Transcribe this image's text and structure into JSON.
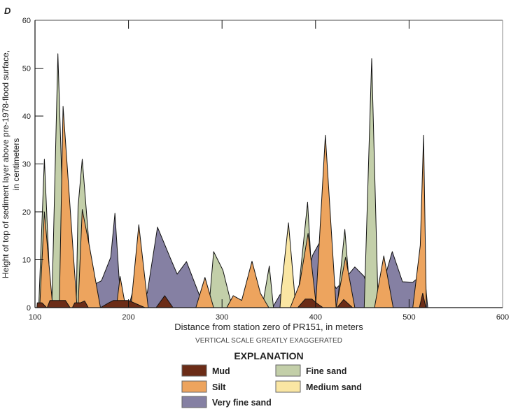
{
  "chart_data": {
    "type": "area",
    "panel_label": "D",
    "title": "",
    "xlabel": "Distance from station zero of PR151, in meters",
    "ylabel_lines": [
      "Height of top of sediment layer above pre-1978-flood surface,",
      "in centimeters"
    ],
    "note": "VERTICAL SCALE GREATLY EXAGGERATED",
    "xlim": [
      100,
      600
    ],
    "ylim": [
      0,
      60
    ],
    "xticks": [
      100,
      200,
      300,
      400,
      500,
      600
    ],
    "yticks": [
      0,
      10,
      20,
      30,
      40,
      50,
      60
    ],
    "legend_title": "EXPLANATION",
    "series": [
      {
        "name": "Very fine sand",
        "color": "#8580a3",
        "polygons": [
          [
            [
              162,
              0
            ],
            [
              165,
              5
            ],
            [
              171,
              5.6
            ],
            [
              181,
              10.5
            ],
            [
              185.5,
              19.7
            ],
            [
              190,
              6
            ],
            [
              193,
              0
            ]
          ],
          [
            [
              200,
              0
            ],
            [
              204,
              3
            ],
            [
              214,
              3
            ],
            [
              220,
              3
            ],
            [
              231,
              16.8
            ],
            [
              245,
              10.2
            ],
            [
              252,
              7
            ],
            [
              262,
              9.6
            ],
            [
              275,
              3
            ],
            [
              280,
              0
            ]
          ],
          [
            [
              354,
              0
            ],
            [
              362,
              2.7
            ],
            [
              377,
              2.2
            ],
            [
              390,
              6
            ],
            [
              397,
              11
            ],
            [
              406,
              14.2
            ],
            [
              412,
              8
            ],
            [
              422,
              4
            ],
            [
              427,
              5
            ],
            [
              442,
              8.5
            ],
            [
              452,
              6.5
            ],
            [
              462,
              0
            ]
          ],
          [
            [
              468,
              0
            ],
            [
              475,
              7
            ],
            [
              482,
              11.7
            ],
            [
              493,
              5.4
            ],
            [
              504,
              5.3
            ],
            [
              507,
              5.8
            ],
            [
              517,
              6
            ],
            [
              520,
              0
            ]
          ]
        ]
      },
      {
        "name": "Fine sand",
        "color": "#c3cfa9",
        "polygons": [
          [
            [
              104,
              0
            ],
            [
              110,
              31
            ],
            [
              117,
              0
            ]
          ],
          [
            [
              118,
              0
            ],
            [
              124.5,
              53
            ],
            [
              133,
              0
            ]
          ],
          [
            [
              144,
              0
            ],
            [
              146,
              21
            ],
            [
              150.5,
              31
            ],
            [
              157,
              15
            ],
            [
              162,
              0
            ]
          ],
          [
            [
              286,
              0
            ],
            [
              291,
              11.7
            ],
            [
              301,
              7.8
            ],
            [
              309,
              1.5
            ],
            [
              311,
              0
            ]
          ],
          [
            [
              343,
              0
            ],
            [
              350.5,
              8.7
            ],
            [
              355,
              0
            ]
          ],
          [
            [
              380,
              0
            ],
            [
              391.5,
              22
            ],
            [
              398,
              0
            ]
          ],
          [
            [
              423,
              0
            ],
            [
              431.3,
              16.3
            ],
            [
              438,
              0
            ]
          ],
          [
            [
              452,
              0
            ],
            [
              460,
              52
            ],
            [
              467,
              0
            ]
          ]
        ]
      },
      {
        "name": "Medium sand",
        "color": "#fae6a3",
        "polygons": [
          [
            [
              362,
              0
            ],
            [
              363,
              3
            ],
            [
              371,
              17.7
            ],
            [
              378,
              2
            ],
            [
              379,
              0
            ]
          ]
        ]
      },
      {
        "name": "Silt",
        "color": "#eda45e",
        "polygons": [
          [
            [
              105,
              0
            ],
            [
              110,
              20
            ],
            [
              119,
              0
            ]
          ],
          [
            [
              126,
              0
            ],
            [
              130,
              42
            ],
            [
              145,
              0
            ]
          ],
          [
            [
              146,
              0
            ],
            [
              150.5,
              20.5
            ],
            [
              158,
              13
            ],
            [
              170,
              0
            ]
          ],
          [
            [
              187,
              0
            ],
            [
              191,
              6.5
            ],
            [
              197,
              0
            ]
          ],
          [
            [
              202.5,
              0
            ],
            [
              211,
              17.3
            ],
            [
              221,
              0
            ]
          ],
          [
            [
              272,
              0
            ],
            [
              281.7,
              6.3
            ],
            [
              291,
              0
            ]
          ],
          [
            [
              305,
              0
            ],
            [
              312,
              2.5
            ],
            [
              321,
              1.5
            ],
            [
              332,
              9.7
            ],
            [
              341,
              3
            ],
            [
              350,
              0
            ]
          ],
          [
            [
              373,
              0
            ],
            [
              383,
              5
            ],
            [
              392,
              15.5
            ],
            [
              401,
              0
            ]
          ],
          [
            [
              400,
              0
            ],
            [
              410.5,
              36
            ],
            [
              422,
              0
            ]
          ],
          [
            [
              422,
              0
            ],
            [
              432,
              10.5
            ],
            [
              442,
              0
            ]
          ],
          [
            [
              463,
              0
            ],
            [
              473,
              10.8
            ],
            [
              483,
              0
            ]
          ],
          [
            [
              504,
              0
            ],
            [
              512,
              13
            ],
            [
              515.5,
              36
            ],
            [
              518.5,
              0
            ]
          ]
        ]
      },
      {
        "name": "Mud",
        "color": "#6b2c17",
        "polygons": [
          [
            [
              102,
              0
            ],
            [
              102.5,
              1
            ],
            [
              107.5,
              1
            ],
            [
              112.5,
              0
            ]
          ],
          [
            [
              113,
              0
            ],
            [
              116,
              1.5
            ],
            [
              132.5,
              1.5
            ],
            [
              137.5,
              0
            ]
          ],
          [
            [
              140,
              0
            ],
            [
              142.5,
              1
            ],
            [
              148.7,
              1
            ],
            [
              153,
              1.4
            ],
            [
              157,
              0
            ]
          ],
          [
            [
              170,
              0
            ],
            [
              179,
              1
            ],
            [
              184,
              1.5
            ],
            [
              200,
              1.5
            ],
            [
              217.5,
              0
            ]
          ],
          [
            [
              229.5,
              0
            ],
            [
              238.7,
              2.5
            ],
            [
              247.5,
              0
            ]
          ],
          [
            [
              381,
              0
            ],
            [
              389,
              1.8
            ],
            [
              396,
              1.8
            ],
            [
              402,
              0.8
            ],
            [
              408,
              0
            ]
          ],
          [
            [
              423,
              0
            ],
            [
              430,
              1.7
            ],
            [
              439.5,
              0
            ]
          ],
          [
            [
              511,
              0
            ],
            [
              514.6,
              3
            ],
            [
              518,
              0
            ]
          ]
        ]
      }
    ],
    "legend_items": [
      "Mud",
      "Silt",
      "Very fine sand",
      "Fine sand",
      "Medium sand"
    ]
  }
}
